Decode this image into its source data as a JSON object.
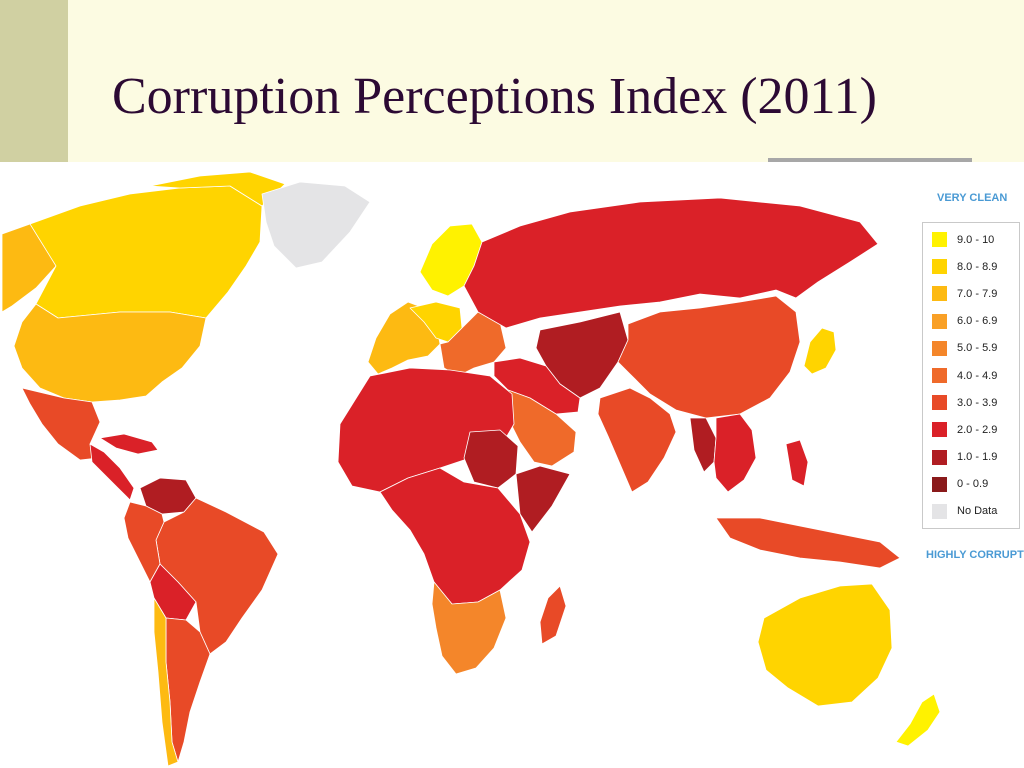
{
  "slide": {
    "title": "Corruption Perceptions Index (2011)"
  },
  "legend": {
    "top_label": "VERY CLEAN",
    "bottom_label": "HIGHLY CORRUPT",
    "items": [
      {
        "label": "9.0 - 10",
        "color": "#FFF200"
      },
      {
        "label": "8.0 - 8.9",
        "color": "#FFD400"
      },
      {
        "label": "7.0 - 7.9",
        "color": "#FDBA12"
      },
      {
        "label": "6.0 - 6.9",
        "color": "#F9A026"
      },
      {
        "label": "5.0 - 5.9",
        "color": "#F4862A"
      },
      {
        "label": "4.0 - 4.9",
        "color": "#EF6A2A"
      },
      {
        "label": "3.0 - 3.9",
        "color": "#E84A27"
      },
      {
        "label": "2.0 - 2.9",
        "color": "#DA2128"
      },
      {
        "label": "1.0 - 1.9",
        "color": "#B01D22"
      },
      {
        "label": "0 - 0.9",
        "color": "#8A1A1B"
      },
      {
        "label": "No Data",
        "color": "#E4E4E6"
      }
    ]
  },
  "map": {
    "regions": [
      {
        "name": "alaska",
        "band": "7.0 - 7.9"
      },
      {
        "name": "canada",
        "band": "8.0 - 8.9"
      },
      {
        "name": "greenland",
        "band": "No Data"
      },
      {
        "name": "usa",
        "band": "7.0 - 7.9"
      },
      {
        "name": "mexico",
        "band": "3.0 - 3.9"
      },
      {
        "name": "central-america",
        "band": "2.0 - 2.9"
      },
      {
        "name": "venezuela",
        "band": "1.0 - 1.9"
      },
      {
        "name": "brazil",
        "band": "3.0 - 3.9"
      },
      {
        "name": "andes",
        "band": "3.0 - 3.9"
      },
      {
        "name": "bolivia",
        "band": "2.0 - 2.9"
      },
      {
        "name": "argentina",
        "band": "3.0 - 3.9"
      },
      {
        "name": "chile",
        "band": "7.0 - 7.9"
      },
      {
        "name": "scandinavia",
        "band": "9.0 - 10"
      },
      {
        "name": "western-europe",
        "band": "7.0 - 7.9"
      },
      {
        "name": "central-europe",
        "band": "8.0 - 8.9"
      },
      {
        "name": "eastern-europe",
        "band": "4.0 - 4.9"
      },
      {
        "name": "russia",
        "band": "2.0 - 2.9"
      },
      {
        "name": "central-asia",
        "band": "1.0 - 1.9"
      },
      {
        "name": "north-africa",
        "band": "2.0 - 2.9"
      },
      {
        "name": "sudan",
        "band": "1.0 - 1.9"
      },
      {
        "name": "central-africa",
        "band": "2.0 - 2.9"
      },
      {
        "name": "southern-africa",
        "band": "5.0 - 5.9"
      },
      {
        "name": "madagascar",
        "band": "3.0 - 3.9"
      },
      {
        "name": "arabian-peninsula",
        "band": "4.0 - 4.9"
      },
      {
        "name": "middle-east",
        "band": "2.0 - 2.9"
      },
      {
        "name": "india",
        "band": "3.0 - 3.9"
      },
      {
        "name": "china",
        "band": "3.0 - 3.9"
      },
      {
        "name": "southeast-asia",
        "band": "2.0 - 2.9"
      },
      {
        "name": "myanmar",
        "band": "1.0 - 1.9"
      },
      {
        "name": "indonesia",
        "band": "3.0 - 3.9"
      },
      {
        "name": "japan",
        "band": "8.0 - 8.9"
      },
      {
        "name": "australia",
        "band": "8.0 - 8.9"
      },
      {
        "name": "new-zealand",
        "band": "9.0 - 10"
      }
    ]
  }
}
